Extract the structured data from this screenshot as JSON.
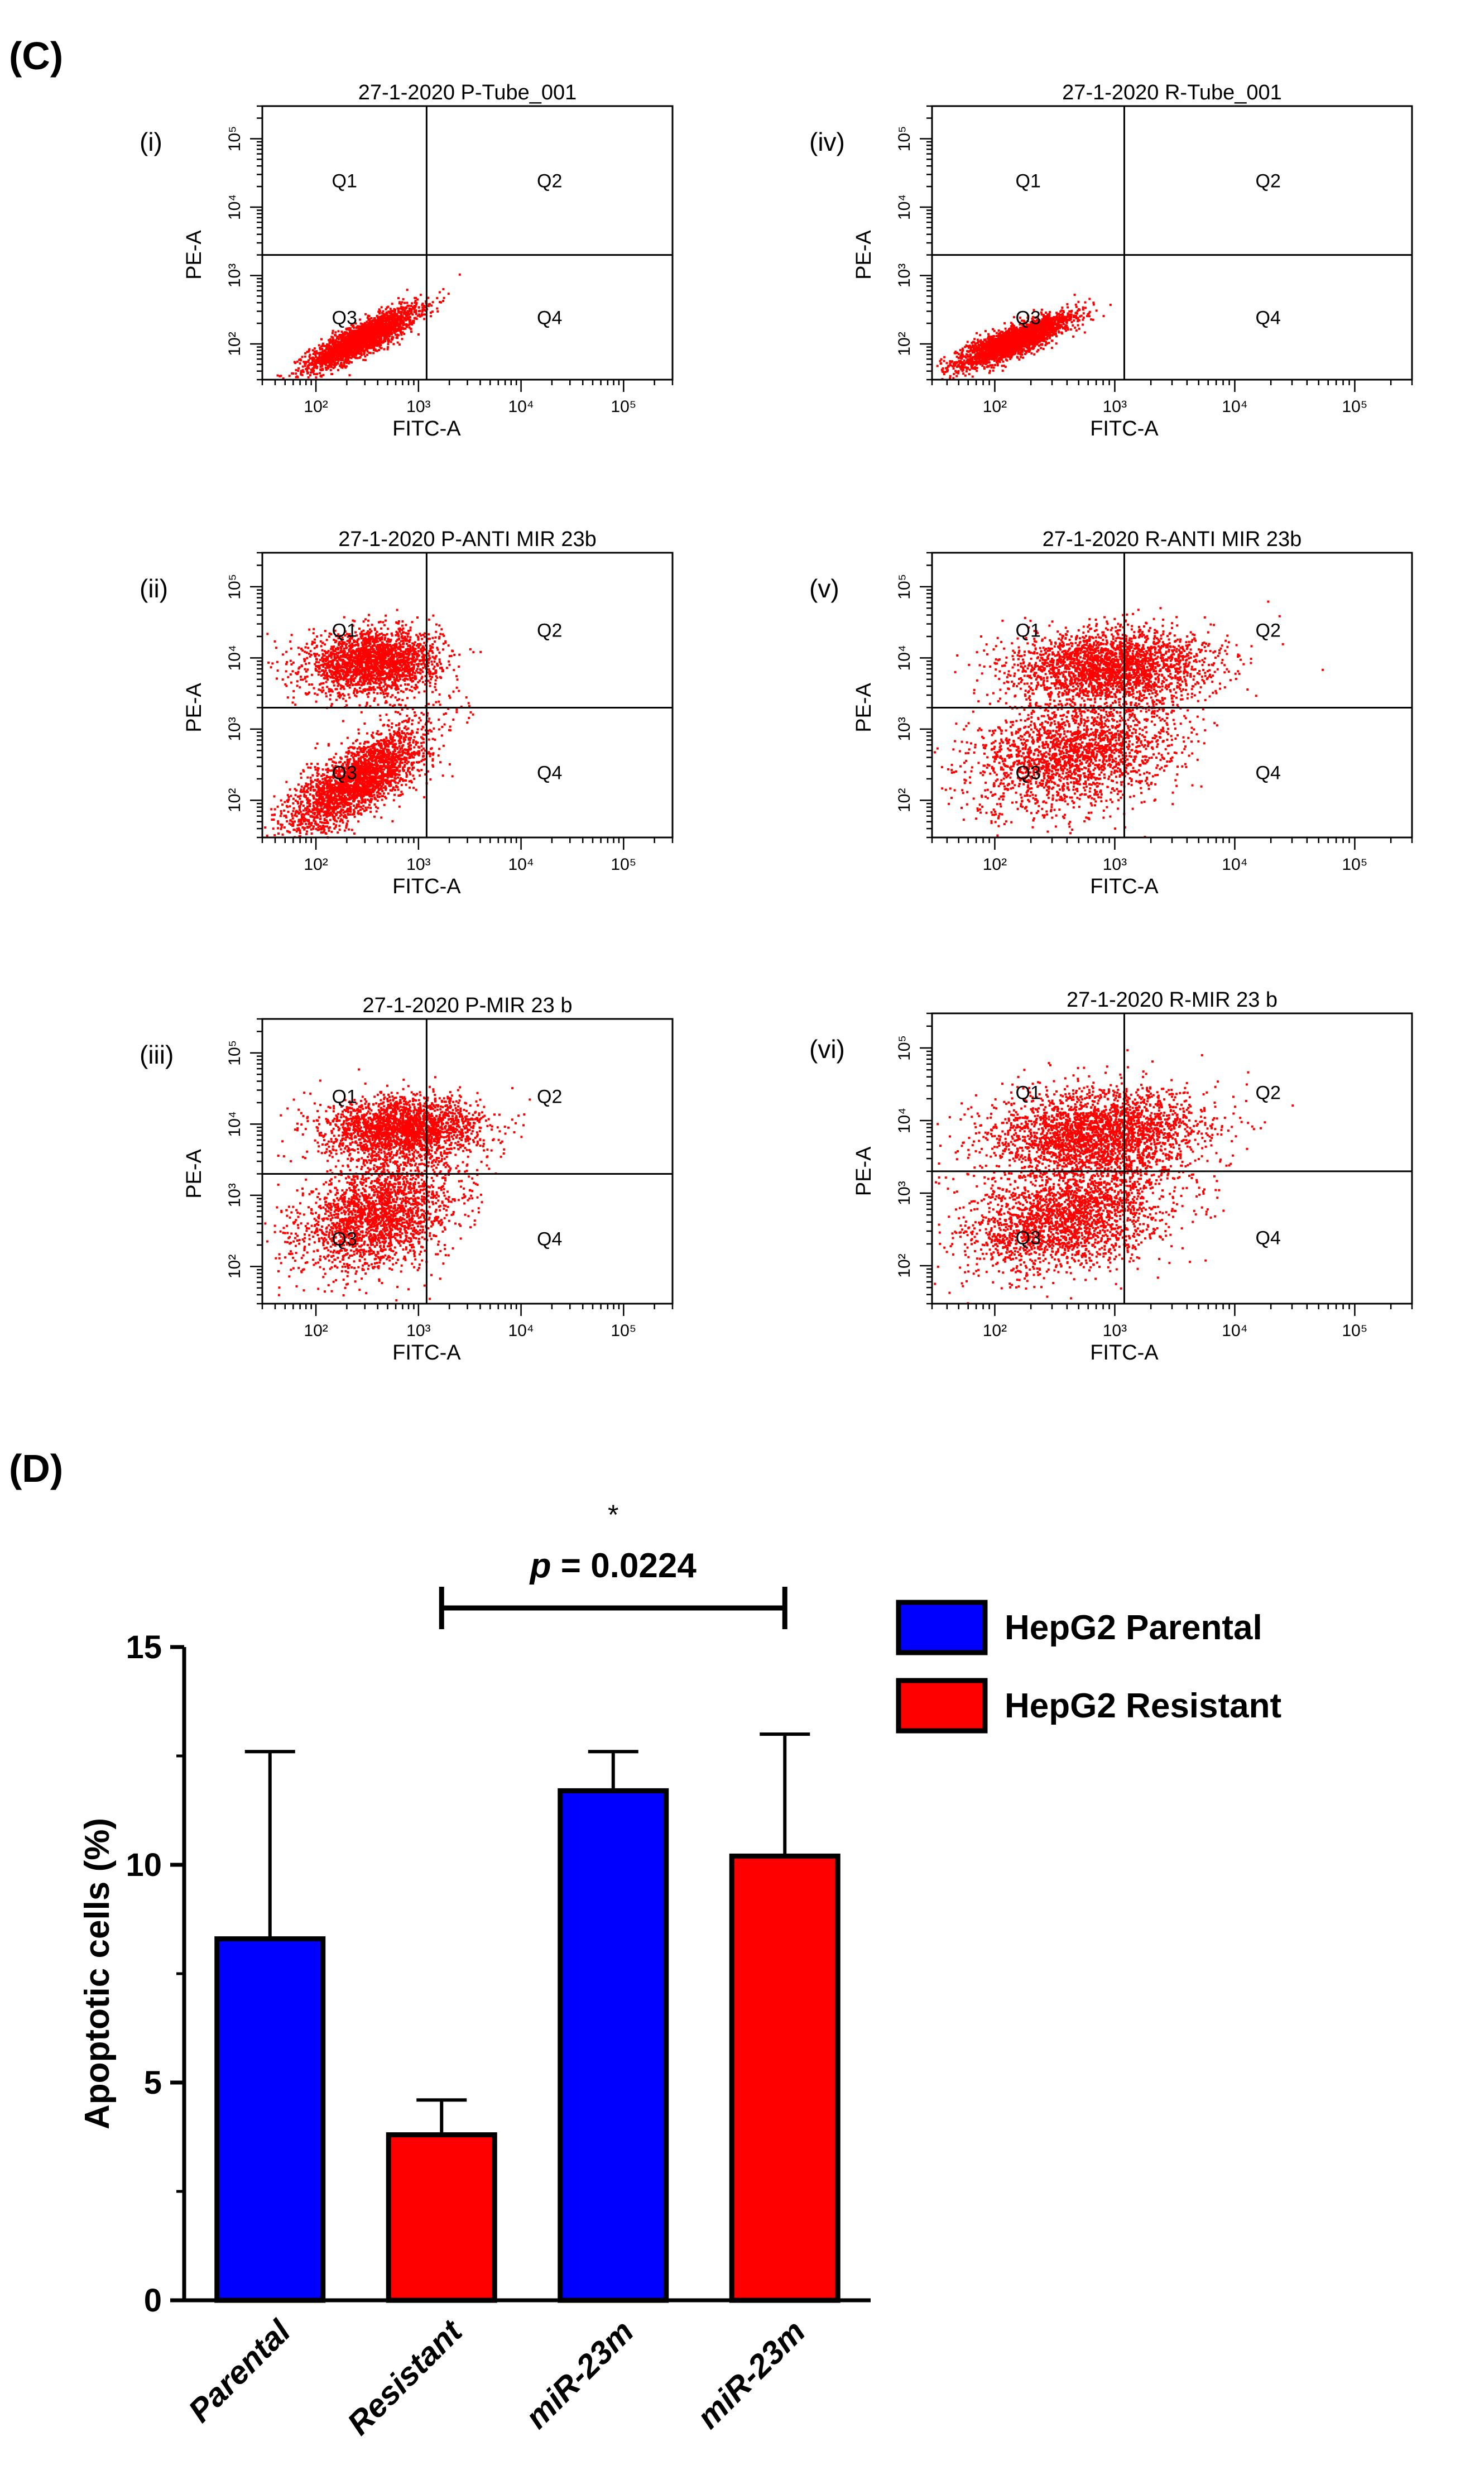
{
  "panel_labels": {
    "c": "(C)",
    "d": "(D)"
  },
  "flow_common": {
    "x_axis_label": "FITC-A",
    "y_axis_label": "PE-A",
    "x_ticks": [
      "10²",
      "10³",
      "10⁴",
      "10⁵"
    ],
    "y_ticks": [
      "10²",
      "10³",
      "10⁴",
      "10⁵"
    ],
    "quadrant_labels": [
      "Q1",
      "Q2",
      "Q3",
      "Q4"
    ]
  },
  "chart_data": [
    {
      "type": "scatter",
      "panel": "(i)",
      "title": "27-1-2020 P-Tube_001",
      "xlabel": "FITC-A",
      "ylabel": "PE-A",
      "xscale": "log",
      "yscale": "log",
      "xlim": [
        30,
        300000
      ],
      "ylim": [
        30,
        300000
      ],
      "gates": {
        "x": 1200,
        "y": 2000
      },
      "dot_color": "#ff0000",
      "quadrants": [
        "Q1",
        "Q2",
        "Q3",
        "Q4"
      ]
    },
    {
      "type": "scatter",
      "panel": "(ii)",
      "title": "27-1-2020 P-ANTI MIR 23b",
      "xlabel": "FITC-A",
      "ylabel": "PE-A",
      "xscale": "log",
      "yscale": "log",
      "xlim": [
        30,
        300000
      ],
      "ylim": [
        30,
        300000
      ],
      "gates": {
        "x": 1200,
        "y": 2000
      },
      "dot_color": "#ff0000",
      "quadrants": [
        "Q1",
        "Q2",
        "Q3",
        "Q4"
      ]
    },
    {
      "type": "scatter",
      "panel": "(iii)",
      "title": "27-1-2020 P-MIR 23 b",
      "xlabel": "FITC-A",
      "ylabel": "PE-A",
      "xscale": "log",
      "yscale": "log",
      "xlim": [
        30,
        300000
      ],
      "ylim": [
        30,
        300000
      ],
      "gates": {
        "x": 1200,
        "y": 2000
      },
      "dot_color": "#ff0000",
      "quadrants": [
        "Q1",
        "Q2",
        "Q3",
        "Q4"
      ]
    },
    {
      "type": "scatter",
      "panel": "(iv)",
      "title": "27-1-2020 R-Tube_001",
      "xlabel": "FITC-A",
      "ylabel": "PE-A",
      "xscale": "log",
      "yscale": "log",
      "xlim": [
        30,
        300000
      ],
      "ylim": [
        30,
        300000
      ],
      "gates": {
        "x": 1200,
        "y": 2000
      },
      "dot_color": "#ff0000",
      "quadrants": [
        "Q1",
        "Q2",
        "Q3",
        "Q4"
      ]
    },
    {
      "type": "scatter",
      "panel": "(v)",
      "title": "27-1-2020 R-ANTI MIR 23b",
      "xlabel": "FITC-A",
      "ylabel": "PE-A",
      "xscale": "log",
      "yscale": "log",
      "xlim": [
        30,
        300000
      ],
      "ylim": [
        30,
        300000
      ],
      "gates": {
        "x": 1200,
        "y": 2000
      },
      "dot_color": "#ff0000",
      "quadrants": [
        "Q1",
        "Q2",
        "Q3",
        "Q4"
      ]
    },
    {
      "type": "scatter",
      "panel": "(vi)",
      "title": "27-1-2020 R-MIR 23 b",
      "xlabel": "FITC-A",
      "ylabel": "PE-A",
      "xscale": "log",
      "yscale": "log",
      "xlim": [
        30,
        300000
      ],
      "ylim": [
        30,
        300000
      ],
      "gates": {
        "x": 1200,
        "y": 2000
      },
      "dot_color": "#ff0000",
      "quadrants": [
        "Q1",
        "Q2",
        "Q3",
        "Q4"
      ]
    },
    {
      "type": "bar",
      "panel": "(D)",
      "categories": [
        "Parental",
        "Resistant",
        "miR-23m",
        "miR-23m"
      ],
      "values": [
        8.3,
        3.8,
        11.7,
        10.2
      ],
      "errors": [
        4.3,
        0.8,
        0.9,
        2.8
      ],
      "bar_colors": [
        "#0000ff",
        "#ff0000",
        "#0000ff",
        "#ff0000"
      ],
      "ylabel": "Apoptotic cells (%)",
      "ylim": [
        0,
        15
      ],
      "yticks": [
        0,
        5,
        10,
        15
      ],
      "series": [
        {
          "name": "HepG2 Parental",
          "color": "#0000ff"
        },
        {
          "name": "HepG2 Resistant",
          "color": "#ff0000"
        }
      ],
      "legend": "top-right",
      "significance": {
        "from": 1,
        "to": 3,
        "star": "*",
        "text": "p = 0.0224"
      }
    }
  ]
}
